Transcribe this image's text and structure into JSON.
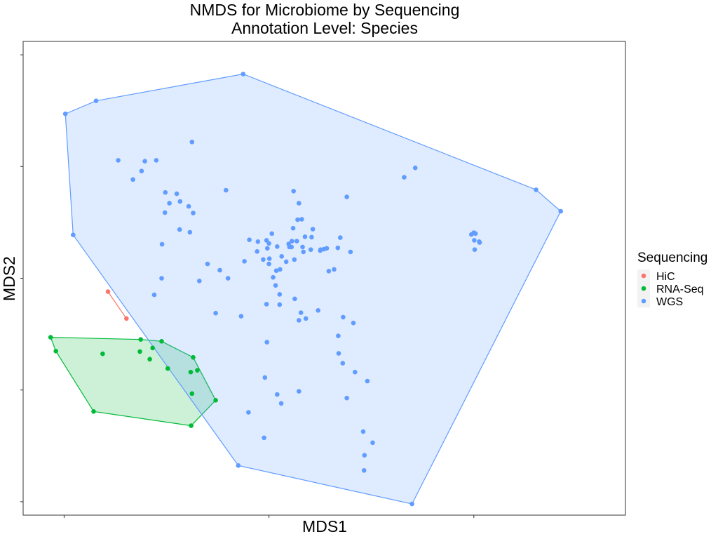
{
  "chart_data": {
    "type": "scatter",
    "title_lines": [
      "NMDS for Microbiome by Sequencing",
      "Annotation Level: Species"
    ],
    "xlabel": "MDS1",
    "ylabel": "MDS2",
    "grid": false,
    "xlim": [
      -0.42,
      1.05
    ],
    "ylim": [
      -0.53,
      0.53
    ],
    "x_ticks": [
      -0.32,
      0.18,
      0.68
    ],
    "y_ticks": [
      -0.5,
      -0.25,
      0.0,
      0.25,
      0.5
    ],
    "x_tick_labels_shown": false,
    "y_tick_labels_shown": false,
    "hulls_shown": true,
    "legend": {
      "title": "Sequencing",
      "placement": "right"
    },
    "series": [
      {
        "name": "HiC",
        "color": "#F8766D",
        "fill": "#F8766D",
        "points": [
          [
            -0.213,
            -0.03
          ],
          [
            -0.168,
            -0.09
          ]
        ]
      },
      {
        "name": "RNA-Seq",
        "color": "#00BA38",
        "fill": "#00BA38",
        "points": [
          [
            -0.353,
            -0.132
          ],
          [
            -0.34,
            -0.163
          ],
          [
            -0.226,
            -0.169
          ],
          [
            -0.248,
            -0.298
          ],
          [
            -0.133,
            -0.137
          ],
          [
            -0.135,
            -0.164
          ],
          [
            -0.111,
            -0.181
          ],
          [
            -0.104,
            -0.156
          ],
          [
            -0.082,
            -0.141
          ],
          [
            -0.067,
            -0.202
          ],
          [
            -0.005,
            -0.177
          ],
          [
            -0.011,
            -0.21
          ],
          [
            0.005,
            -0.206
          ],
          [
            -0.008,
            -0.258
          ],
          [
            -0.01,
            -0.33
          ],
          [
            0.05,
            -0.273
          ]
        ]
      },
      {
        "name": "WGS",
        "color": "#619CFF",
        "fill": "#619CFF",
        "points": [
          [
            -0.317,
            0.368
          ],
          [
            -0.242,
            0.397
          ],
          [
            -0.298,
            0.097
          ],
          [
            0.117,
            0.457
          ],
          [
            0.832,
            0.198
          ],
          [
            0.892,
            0.15
          ],
          [
            0.529,
            -0.505
          ],
          [
            0.105,
            -0.419
          ],
          [
            -0.188,
            0.264
          ],
          [
            -0.152,
            0.221
          ],
          [
            -0.123,
            0.262
          ],
          [
            -0.131,
            0.24
          ],
          [
            -0.095,
            0.264
          ],
          [
            -0.008,
            0.305
          ],
          [
            -0.073,
            0.192
          ],
          [
            -0.045,
            0.189
          ],
          [
            -0.037,
            0.172
          ],
          [
            -0.063,
            0.168
          ],
          [
            -0.016,
            0.161
          ],
          [
            -0.005,
            0.146
          ],
          [
            -0.074,
            0.147
          ],
          [
            -0.038,
            0.109
          ],
          [
            -0.013,
            0.103
          ],
          [
            -0.081,
            0.076
          ],
          [
            -0.082,
            0.0
          ],
          [
            0.075,
            0.197
          ],
          [
            0.132,
            0.086
          ],
          [
            0.153,
            0.082
          ],
          [
            0.174,
            0.085
          ],
          [
            0.18,
            0.078
          ],
          [
            0.176,
            0.067
          ],
          [
            0.151,
            0.06
          ],
          [
            0.166,
            0.042
          ],
          [
            0.181,
            0.044
          ],
          [
            0.187,
            0.1
          ],
          [
            0.211,
            0.049
          ],
          [
            0.242,
            0.042
          ],
          [
            0.236,
            0.083
          ],
          [
            0.12,
            0.038
          ],
          [
            0.198,
            0.017
          ],
          [
            0.19,
            0.002
          ],
          [
            0.262,
            0.07
          ],
          [
            0.268,
            0.093
          ],
          [
            0.284,
            0.092
          ],
          [
            0.282,
            0.064
          ],
          [
            0.264,
            0.059
          ],
          [
            0.306,
            0.064
          ],
          [
            0.287,
            0.11
          ],
          [
            0.25,
            0.131
          ],
          [
            0.239,
            0.112
          ],
          [
            0.228,
            0.077
          ],
          [
            0.235,
            0.07
          ],
          [
            0.314,
            0.065
          ],
          [
            0.305,
            0.062
          ],
          [
            0.321,
            0.067
          ],
          [
            0.348,
            0.068
          ],
          [
            0.354,
            0.091
          ],
          [
            0.326,
            0.016
          ],
          [
            0.339,
            0.02
          ],
          [
            0.379,
            0.059
          ],
          [
            0.207,
            0.02
          ],
          [
            0.222,
            0.037
          ],
          [
            0.243,
            -0.046
          ],
          [
            0.23,
            0.07
          ],
          [
            0.248,
            0.083
          ],
          [
            0.26,
            0.132
          ],
          [
            0.253,
            0.168
          ],
          [
            0.37,
            0.182
          ],
          [
            0.51,
            0.226
          ],
          [
            0.537,
            0.247
          ],
          [
            0.68,
            0.102
          ],
          [
            0.684,
            0.1
          ],
          [
            0.681,
            0.085
          ],
          [
            0.693,
            0.082
          ],
          [
            0.682,
            0.064
          ],
          [
            0.694,
            0.08
          ],
          [
            0.674,
            0.098
          ],
          [
            0.24,
            0.195
          ],
          [
            0.2,
            0.071
          ],
          [
            0.03,
            0.032
          ],
          [
            0.01,
            -0.006
          ],
          [
            0.06,
            0.018
          ],
          [
            0.08,
            0.0
          ],
          [
            0.18,
            0.032
          ],
          [
            0.196,
            -0.016
          ],
          [
            0.206,
            -0.036
          ],
          [
            0.05,
            -0.078
          ],
          [
            -0.1,
            -0.037
          ],
          [
            0.112,
            -0.085
          ],
          [
            0.174,
            -0.058
          ],
          [
            0.206,
            -0.059
          ],
          [
            0.258,
            -0.077
          ],
          [
            0.253,
            -0.094
          ],
          [
            0.27,
            -0.09
          ],
          [
            0.3,
            -0.072
          ],
          [
            0.349,
            -0.129
          ],
          [
            0.175,
            -0.143
          ],
          [
            0.17,
            -0.222
          ],
          [
            0.386,
            -0.1
          ],
          [
            0.361,
            -0.087
          ],
          [
            0.35,
            -0.168
          ],
          [
            0.36,
            -0.19
          ],
          [
            0.39,
            -0.21
          ],
          [
            0.42,
            -0.23
          ],
          [
            0.2,
            -0.26
          ],
          [
            0.21,
            -0.28
          ],
          [
            0.37,
            -0.268
          ],
          [
            0.253,
            -0.253
          ],
          [
            0.13,
            -0.3
          ],
          [
            0.168,
            -0.357
          ],
          [
            0.41,
            -0.343
          ],
          [
            0.433,
            -0.368
          ],
          [
            0.413,
            -0.396
          ],
          [
            0.412,
            -0.43
          ]
        ]
      }
    ]
  }
}
